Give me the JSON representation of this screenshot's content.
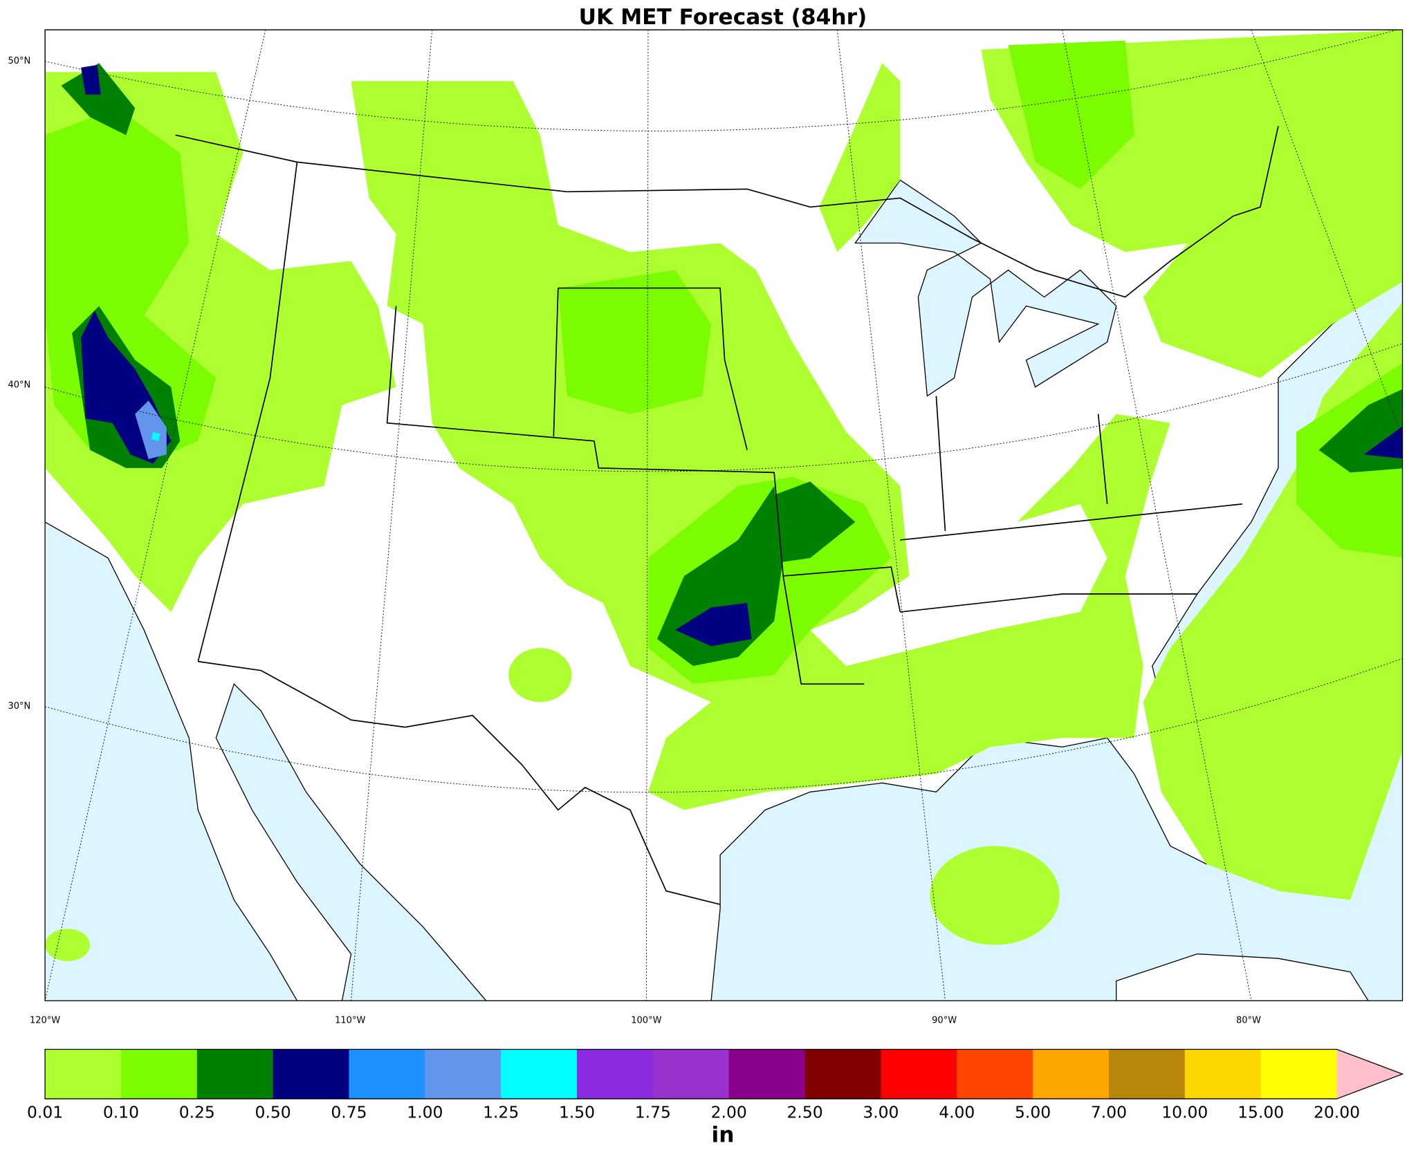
{
  "title": "UK MET Forecast (84hr)",
  "map": {
    "lat_labels": [
      "50°N",
      "40°N",
      "30°N"
    ],
    "lon_labels": [
      "120°W",
      "110°W",
      "100°W",
      "90°W",
      "80°W"
    ]
  },
  "colorbar": {
    "levels": [
      "0.01",
      "0.10",
      "0.25",
      "0.50",
      "0.75",
      "1.00",
      "1.25",
      "1.50",
      "1.75",
      "2.00",
      "2.50",
      "3.00",
      "4.00",
      "5.00",
      "7.00",
      "10.00",
      "15.00",
      "20.00"
    ],
    "colors": [
      "#adff2f",
      "#7cfc00",
      "#008000",
      "#000080",
      "#1e90ff",
      "#6495ed",
      "#00ffff",
      "#8a2be2",
      "#9932cc",
      "#8b008b",
      "#800000",
      "#ff0000",
      "#ff4500",
      "#ffa500",
      "#b8860b",
      "#ffd700",
      "#ffff00"
    ],
    "extend_color": "#ffc0cb",
    "unit": "in"
  }
}
